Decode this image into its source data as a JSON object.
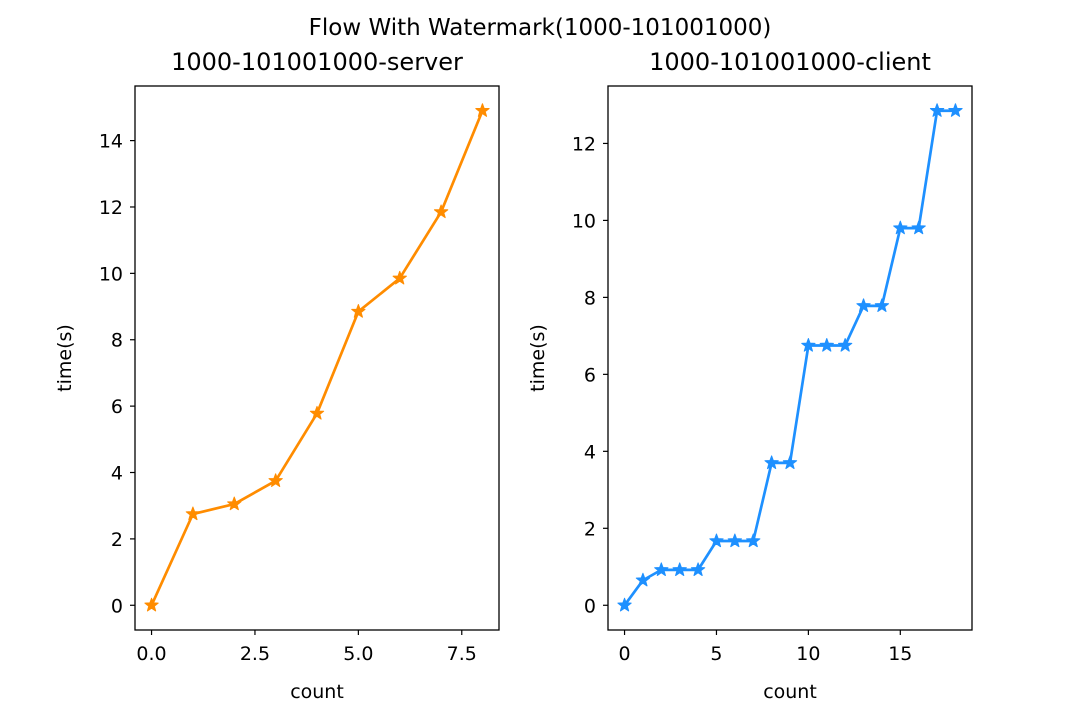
{
  "suptitle": "Flow With Watermark(1000-101001000)",
  "chart_data": [
    {
      "type": "line",
      "title": "1000-101001000-server",
      "xlabel": "count",
      "ylabel": "time(s)",
      "x": [
        0,
        1,
        2,
        3,
        4,
        5,
        6,
        7,
        8
      ],
      "series": [
        {
          "values": [
            0.0,
            2.75,
            3.05,
            3.75,
            5.78,
            8.85,
            9.85,
            11.85,
            14.9
          ],
          "color": "#ff8c00",
          "marker": "star"
        }
      ],
      "xlim": [
        -0.4,
        8.4
      ],
      "ylim": [
        -0.745,
        15.645
      ],
      "xticks": [
        0.0,
        2.5,
        5.0,
        7.5
      ],
      "xtick_labels": [
        "0.0",
        "2.5",
        "5.0",
        "7.5"
      ],
      "yticks": [
        0,
        2,
        4,
        6,
        8,
        10,
        12,
        14
      ],
      "ytick_labels": [
        "0",
        "2",
        "4",
        "6",
        "8",
        "10",
        "12",
        "14"
      ],
      "grid": false
    },
    {
      "type": "line",
      "title": "1000-101001000-client",
      "xlabel": "count",
      "ylabel": "time(s)",
      "x": [
        0,
        1,
        2,
        3,
        4,
        5,
        6,
        7,
        8,
        9,
        10,
        11,
        12,
        13,
        14,
        15,
        16,
        17,
        18
      ],
      "series": [
        {
          "values": [
            0.0,
            0.65,
            0.92,
            0.92,
            0.92,
            1.67,
            1.67,
            1.67,
            3.7,
            3.7,
            6.75,
            6.75,
            6.75,
            7.78,
            7.78,
            9.8,
            9.8,
            12.85,
            12.85
          ],
          "color": "#1e90ff",
          "marker": "star"
        }
      ],
      "xlim": [
        -0.9,
        18.9
      ],
      "ylim": [
        -0.6425,
        13.4925
      ],
      "xticks": [
        0,
        5,
        10,
        15
      ],
      "xtick_labels": [
        "0",
        "5",
        "10",
        "15"
      ],
      "yticks": [
        0,
        2,
        4,
        6,
        8,
        10,
        12
      ],
      "ytick_labels": [
        "0",
        "2",
        "4",
        "6",
        "8",
        "10",
        "12"
      ],
      "grid": false
    }
  ]
}
